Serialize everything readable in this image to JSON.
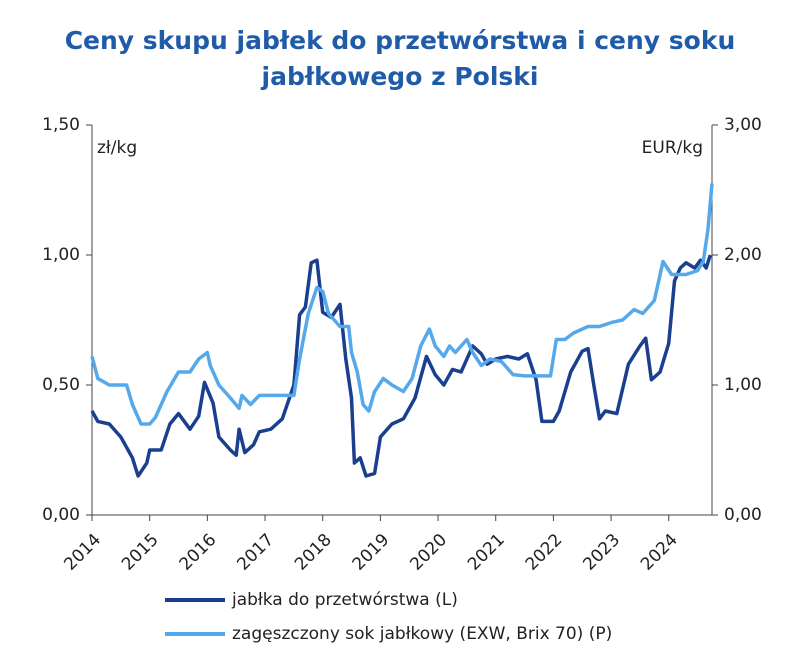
{
  "chart_data": {
    "type": "line",
    "title": [
      "Ceny skupu jabłek do przetwórstwa i ceny soku",
      "jabłkowego z Polski"
    ],
    "ylabel": "zł/kg",
    "y2label": "EUR/kg",
    "xlim": [
      2014,
      2024.75
    ],
    "xticks": [
      2014,
      2015,
      2016,
      2017,
      2018,
      2019,
      2020,
      2021,
      2022,
      2023,
      2024
    ],
    "ylim": [
      0,
      1.5
    ],
    "yticks": [
      {
        "value": 0,
        "label": "0,00"
      },
      {
        "value": 0.5,
        "label": "0,50"
      },
      {
        "value": 1,
        "label": "1,00"
      },
      {
        "value": 1.5,
        "label": "1,50"
      }
    ],
    "y2lim": [
      0,
      3
    ],
    "y2ticks": [
      {
        "value": 0,
        "label": "0,00"
      },
      {
        "value": 1,
        "label": "1,00"
      },
      {
        "value": 2,
        "label": "2,00"
      },
      {
        "value": 3,
        "label": "3,00"
      }
    ],
    "series": [
      {
        "name": "jabłka do przetwórstwa (L)",
        "color": "#1a3f8f",
        "axis": "y",
        "x": [
          2014.0,
          2014.1,
          2014.3,
          2014.5,
          2014.7,
          2014.8,
          2014.95,
          2015.0,
          2015.2,
          2015.35,
          2015.5,
          2015.7,
          2015.85,
          2015.95,
          2016.1,
          2016.2,
          2016.4,
          2016.5,
          2016.55,
          2016.65,
          2016.8,
          2016.9,
          2017.1,
          2017.3,
          2017.5,
          2017.6,
          2017.7,
          2017.8,
          2017.9,
          2018.0,
          2018.15,
          2018.3,
          2018.4,
          2018.5,
          2018.55,
          2018.65,
          2018.75,
          2018.9,
          2019.0,
          2019.2,
          2019.4,
          2019.6,
          2019.8,
          2019.95,
          2020.1,
          2020.25,
          2020.4,
          2020.6,
          2020.75,
          2020.85,
          2021.0,
          2021.2,
          2021.4,
          2021.55,
          2021.7,
          2021.8,
          2022.0,
          2022.1,
          2022.3,
          2022.5,
          2022.6,
          2022.7,
          2022.8,
          2022.9,
          2023.1,
          2023.3,
          2023.5,
          2023.6,
          2023.7,
          2023.85,
          2024.0,
          2024.1,
          2024.2,
          2024.3,
          2024.45,
          2024.55,
          2024.65,
          2024.72
        ],
        "values": [
          0.4,
          0.36,
          0.35,
          0.3,
          0.22,
          0.15,
          0.2,
          0.25,
          0.25,
          0.35,
          0.39,
          0.33,
          0.38,
          0.51,
          0.43,
          0.3,
          0.25,
          0.23,
          0.33,
          0.24,
          0.27,
          0.32,
          0.33,
          0.37,
          0.5,
          0.77,
          0.8,
          0.97,
          0.98,
          0.78,
          0.76,
          0.81,
          0.6,
          0.45,
          0.2,
          0.22,
          0.15,
          0.16,
          0.3,
          0.35,
          0.37,
          0.45,
          0.61,
          0.54,
          0.5,
          0.56,
          0.55,
          0.65,
          0.62,
          0.58,
          0.6,
          0.61,
          0.6,
          0.62,
          0.52,
          0.36,
          0.36,
          0.4,
          0.55,
          0.63,
          0.64,
          0.5,
          0.37,
          0.4,
          0.39,
          0.58,
          0.65,
          0.68,
          0.52,
          0.55,
          0.66,
          0.9,
          0.95,
          0.97,
          0.95,
          0.98,
          0.95,
          1.0
        ]
      },
      {
        "name": "zagęszczony sok jabłkowy (EXW, Brix 70) (P)",
        "color": "#55a9ea",
        "axis": "y2",
        "x": [
          2014.0,
          2014.1,
          2014.3,
          2014.5,
          2014.6,
          2014.7,
          2014.85,
          2015.0,
          2015.1,
          2015.3,
          2015.5,
          2015.7,
          2015.85,
          2016.0,
          2016.05,
          2016.2,
          2016.4,
          2016.55,
          2016.6,
          2016.75,
          2016.9,
          2017.2,
          2017.5,
          2017.6,
          2017.75,
          2017.9,
          2018.0,
          2018.1,
          2018.3,
          2018.45,
          2018.5,
          2018.6,
          2018.7,
          2018.8,
          2018.9,
          2019.05,
          2019.2,
          2019.4,
          2019.55,
          2019.7,
          2019.85,
          2019.95,
          2020.1,
          2020.2,
          2020.3,
          2020.5,
          2020.6,
          2020.75,
          2020.9,
          2021.1,
          2021.3,
          2021.5,
          2021.7,
          2021.95,
          2022.05,
          2022.2,
          2022.35,
          2022.6,
          2022.8,
          2023.0,
          2023.2,
          2023.4,
          2023.55,
          2023.75,
          2023.9,
          2024.05,
          2024.3,
          2024.5,
          2024.6,
          2024.68,
          2024.75
        ],
        "values": [
          1.22,
          1.05,
          1.0,
          1.0,
          1.0,
          0.85,
          0.7,
          0.7,
          0.75,
          0.95,
          1.1,
          1.1,
          1.2,
          1.25,
          1.15,
          1.0,
          0.9,
          0.82,
          0.92,
          0.85,
          0.92,
          0.92,
          0.92,
          1.2,
          1.55,
          1.75,
          1.72,
          1.55,
          1.45,
          1.45,
          1.25,
          1.1,
          0.85,
          0.8,
          0.95,
          1.05,
          1.0,
          0.95,
          1.05,
          1.3,
          1.43,
          1.3,
          1.22,
          1.3,
          1.25,
          1.35,
          1.25,
          1.15,
          1.2,
          1.18,
          1.08,
          1.07,
          1.07,
          1.07,
          1.35,
          1.35,
          1.4,
          1.45,
          1.45,
          1.48,
          1.5,
          1.58,
          1.55,
          1.65,
          1.95,
          1.85,
          1.85,
          1.88,
          1.95,
          2.2,
          2.55
        ]
      }
    ]
  }
}
